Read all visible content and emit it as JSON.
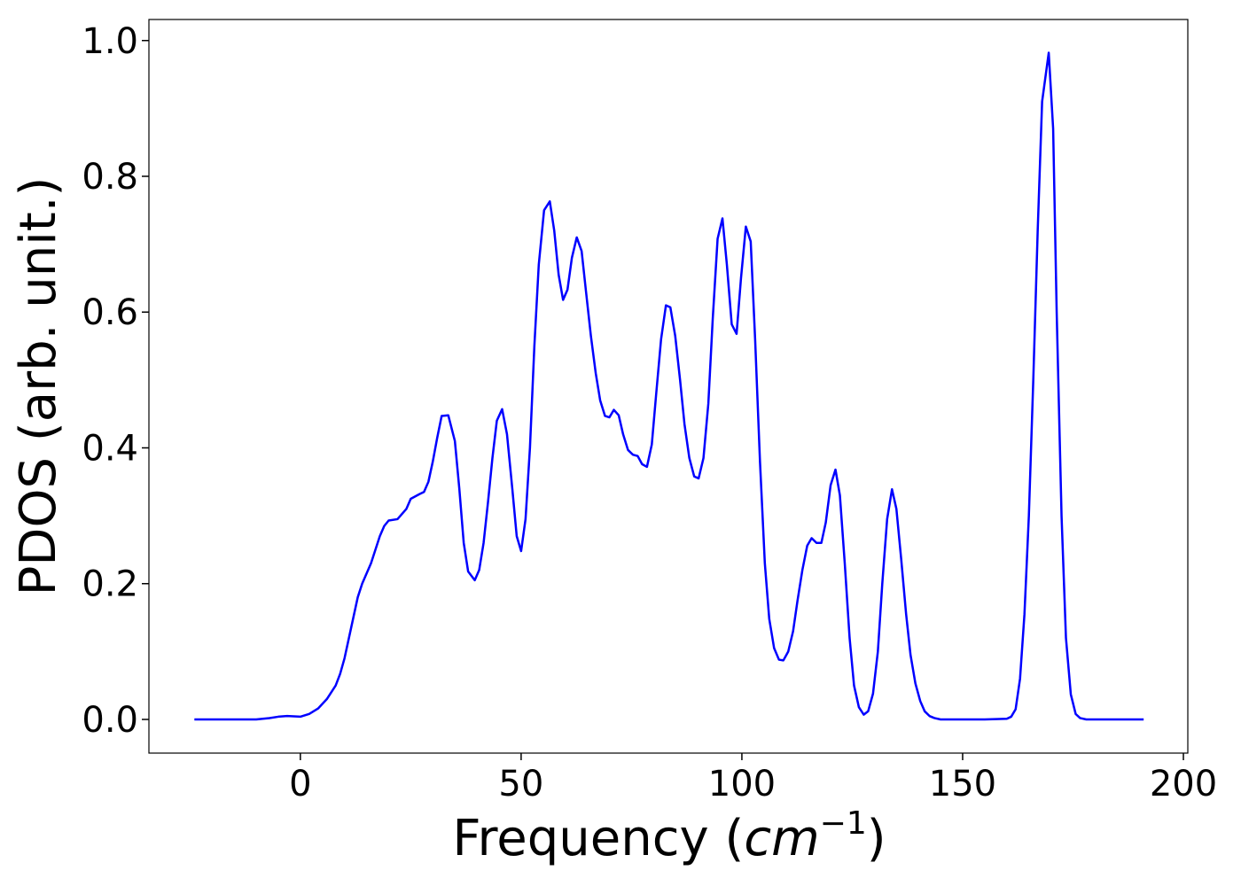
{
  "chart_data": {
    "type": "line",
    "xlabel_parts": [
      "Frequency (",
      "cm",
      "−1",
      ")"
    ],
    "ylabel": "PDOS (arb. unit.)",
    "x": [
      -24,
      -20,
      -15,
      -10,
      -7,
      -5,
      -3,
      0,
      2,
      4,
      6,
      8,
      9,
      10,
      11,
      12,
      13,
      14,
      16,
      18,
      19,
      20,
      22,
      24,
      25,
      27,
      28,
      29,
      30,
      31,
      32,
      33.5,
      35,
      36,
      37,
      38,
      39.5,
      40.5,
      41.5,
      42.5,
      43.5,
      44.5,
      45.7,
      46.8,
      48,
      49,
      50,
      51,
      52,
      53,
      54,
      55.2,
      56.5,
      57.5,
      58.5,
      59.5,
      60.5,
      61.5,
      62.6,
      63.7,
      64.7,
      65.8,
      66.9,
      67.9,
      69,
      70,
      71,
      72.1,
      73.1,
      74.2,
      75.3,
      76.4,
      77.4,
      78.5,
      79.6,
      80.6,
      81.7,
      82.8,
      83.8,
      84.9,
      86,
      87,
      88.1,
      89.2,
      90.2,
      91.3,
      92.4,
      93.4,
      94.5,
      95.6,
      96.6,
      97.7,
      98.8,
      99.8,
      100.9,
      102,
      103,
      104.1,
      105.2,
      106.2,
      107.3,
      108.4,
      109.4,
      110.5,
      111.6,
      112.6,
      113.7,
      114.8,
      115.8,
      116.9,
      118,
      119,
      120.1,
      121.2,
      122.2,
      123.3,
      124.4,
      125.4,
      126.5,
      127.6,
      128.6,
      129.7,
      130.8,
      131.8,
      132.9,
      134,
      135,
      136.1,
      137.2,
      138.2,
      139.3,
      140.4,
      141.4,
      142.5,
      143.6,
      145,
      150,
      155,
      160,
      161,
      162,
      163,
      164,
      165,
      166,
      167,
      168,
      169.5,
      170.5,
      171.3,
      172.4,
      173.4,
      174.5,
      175.6,
      176.6,
      178,
      185,
      191
    ],
    "series": [
      {
        "name": "PDOS",
        "color": "#0000ff",
        "values": [
          0,
          0,
          0,
          0,
          0.002,
          0.004,
          0.005,
          0.004,
          0.008,
          0.016,
          0.03,
          0.05,
          0.067,
          0.09,
          0.12,
          0.15,
          0.18,
          0.2,
          0.23,
          0.27,
          0.285,
          0.293,
          0.295,
          0.31,
          0.325,
          0.332,
          0.335,
          0.35,
          0.38,
          0.415,
          0.447,
          0.448,
          0.41,
          0.34,
          0.26,
          0.218,
          0.205,
          0.22,
          0.26,
          0.32,
          0.385,
          0.44,
          0.457,
          0.42,
          0.34,
          0.27,
          0.248,
          0.295,
          0.4,
          0.55,
          0.67,
          0.75,
          0.763,
          0.72,
          0.655,
          0.618,
          0.633,
          0.68,
          0.71,
          0.69,
          0.63,
          0.565,
          0.51,
          0.47,
          0.447,
          0.445,
          0.456,
          0.448,
          0.42,
          0.397,
          0.39,
          0.388,
          0.376,
          0.372,
          0.405,
          0.48,
          0.56,
          0.61,
          0.607,
          0.565,
          0.5,
          0.435,
          0.385,
          0.358,
          0.355,
          0.385,
          0.465,
          0.59,
          0.708,
          0.738,
          0.67,
          0.582,
          0.568,
          0.65,
          0.726,
          0.704,
          0.56,
          0.38,
          0.23,
          0.148,
          0.105,
          0.088,
          0.087,
          0.1,
          0.13,
          0.175,
          0.22,
          0.256,
          0.267,
          0.26,
          0.26,
          0.29,
          0.345,
          0.368,
          0.33,
          0.23,
          0.12,
          0.05,
          0.018,
          0.007,
          0.012,
          0.038,
          0.1,
          0.2,
          0.295,
          0.339,
          0.31,
          0.235,
          0.155,
          0.095,
          0.053,
          0.027,
          0.012,
          0.005,
          0.002,
          0,
          0,
          0,
          0.001,
          0.004,
          0.015,
          0.06,
          0.155,
          0.3,
          0.5,
          0.72,
          0.91,
          0.982,
          0.87,
          0.6,
          0.3,
          0.12,
          0.037,
          0.008,
          0.002,
          0,
          0,
          0
        ]
      }
    ],
    "xlim": [
      -34.3,
      201
    ],
    "ylim": [
      -0.0496,
      1.031
    ],
    "xticks": [
      0,
      50,
      100,
      150,
      200
    ],
    "yticks": [
      {
        "value": 0,
        "label": "0.0"
      },
      {
        "value": 0.2,
        "label": "0.2"
      },
      {
        "value": 0.4,
        "label": "0.4"
      },
      {
        "value": 0.6,
        "label": "0.6"
      },
      {
        "value": 0.8,
        "label": "0.8"
      },
      {
        "value": 1,
        "label": "1.0"
      }
    ],
    "grid": false
  }
}
